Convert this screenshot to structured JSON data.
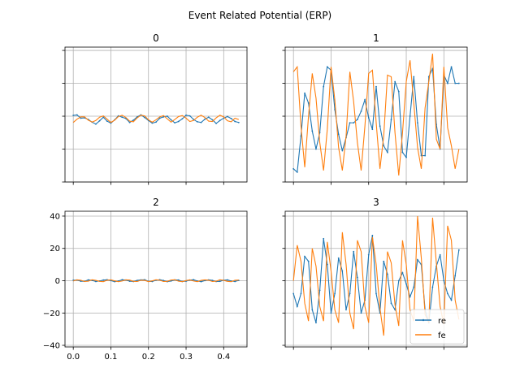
{
  "figure": {
    "title": "Event Related Potential (ERP)"
  },
  "colors": {
    "re": "#1f77b4",
    "fe": "#ff7f0e",
    "grid": "#b0b0b0",
    "axes": "#000000"
  },
  "chart_data": [
    {
      "type": "line",
      "title": "0",
      "xlim": [
        -0.022,
        0.462
      ],
      "ylim": [
        -40,
        42
      ],
      "grid": true,
      "x_ticks_labeled": false,
      "y_ticks_labeled": false,
      "x": [
        0.0,
        0.01,
        0.02,
        0.03,
        0.04,
        0.05,
        0.06,
        0.07,
        0.08,
        0.09,
        0.1,
        0.11,
        0.12,
        0.13,
        0.14,
        0.15,
        0.16,
        0.17,
        0.18,
        0.19,
        0.2,
        0.21,
        0.22,
        0.23,
        0.24,
        0.25,
        0.26,
        0.27,
        0.28,
        0.29,
        0.3,
        0.31,
        0.32,
        0.33,
        0.34,
        0.35,
        0.36,
        0.37,
        0.38,
        0.39,
        0.4,
        0.41,
        0.42,
        0.43,
        0.44
      ],
      "series": [
        {
          "name": "re",
          "values": [
            0.5,
            0.8,
            -1.2,
            -1.0,
            -2.0,
            -3.6,
            -4.8,
            -2.8,
            -0.6,
            -3.0,
            -4.2,
            -2.2,
            0.2,
            -0.6,
            -1.4,
            -3.8,
            -2.4,
            -0.4,
            0.8,
            -0.8,
            -2.6,
            -4.2,
            -3.6,
            -1.2,
            -0.4,
            0.0,
            -2.2,
            -4.0,
            -3.2,
            -1.6,
            0.6,
            0.2,
            -2.0,
            -3.4,
            -3.8,
            -1.8,
            -0.6,
            -2.2,
            -4.4,
            -2.6,
            -1.2,
            -0.2,
            -1.4,
            -3.2,
            -3.8
          ]
        },
        {
          "name": "fe",
          "values": [
            -3.8,
            -1.8,
            -0.4,
            -0.4,
            -2.4,
            -3.6,
            -2.6,
            -0.6,
            0.2,
            -1.8,
            -3.8,
            -2.4,
            -0.2,
            0.6,
            -0.8,
            -3.0,
            -3.4,
            -1.0,
            0.6,
            0.2,
            -2.2,
            -3.6,
            -2.2,
            -0.4,
            0.4,
            -1.6,
            -3.6,
            -2.0,
            -0.2,
            0.4,
            -1.2,
            -3.2,
            -2.6,
            -0.6,
            0.6,
            -0.8,
            -3.0,
            -3.2,
            -1.0,
            0.6,
            -0.4,
            -2.8,
            -3.4,
            -1.2,
            -2.0
          ]
        }
      ]
    },
    {
      "type": "line",
      "title": "1",
      "xlim": [
        -0.022,
        0.462
      ],
      "ylim": [
        -40,
        42
      ],
      "grid": true,
      "x_ticks_labeled": false,
      "y_ticks_labeled": false,
      "x": [
        0.0,
        0.01,
        0.02,
        0.03,
        0.04,
        0.05,
        0.06,
        0.07,
        0.08,
        0.09,
        0.1,
        0.11,
        0.12,
        0.13,
        0.14,
        0.15,
        0.16,
        0.17,
        0.18,
        0.19,
        0.2,
        0.21,
        0.22,
        0.23,
        0.24,
        0.25,
        0.26,
        0.27,
        0.28,
        0.29,
        0.3,
        0.31,
        0.32,
        0.33,
        0.34,
        0.35,
        0.36,
        0.37,
        0.38,
        0.39,
        0.4,
        0.41,
        0.42,
        0.43,
        0.44
      ],
      "series": [
        {
          "name": "re",
          "values": [
            -32,
            -34,
            -12,
            14,
            8,
            -9,
            -20,
            -10,
            18,
            30,
            28,
            4,
            -11,
            -21,
            -13,
            -4,
            -4,
            -2,
            3,
            10,
            -1,
            -8,
            18,
            -6,
            -18,
            -22,
            -2,
            21,
            15,
            -22,
            -25,
            0,
            24,
            -4,
            -24,
            -24,
            24,
            29,
            -5,
            -20,
            25,
            20,
            30,
            20,
            20
          ]
        },
        {
          "name": "fe",
          "values": [
            27,
            30,
            -6,
            -31,
            0,
            26,
            11,
            -16,
            -33,
            -8,
            30,
            10,
            -19,
            -33,
            -12,
            27,
            9,
            -16,
            -33,
            -6,
            26,
            28,
            -4,
            -32,
            -12,
            25,
            24,
            -10,
            -36,
            -10,
            21,
            34,
            8,
            -19,
            -32,
            5,
            21,
            38,
            -14,
            -20,
            30,
            -7,
            -18,
            -32,
            -20
          ]
        }
      ]
    },
    {
      "type": "line",
      "title": "2",
      "xlim": [
        -0.022,
        0.462
      ],
      "ylim": [
        -41,
        43
      ],
      "grid": true,
      "x_ticks": [
        0.0,
        0.1,
        0.2,
        0.3,
        0.4
      ],
      "x_tick_labels": [
        "0.0",
        "0.1",
        "0.2",
        "0.3",
        "0.4"
      ],
      "y_ticks": [
        -40,
        -20,
        0,
        20,
        40
      ],
      "y_tick_labels": [
        "−40",
        "−20",
        "0",
        "20",
        "40"
      ],
      "x": [
        0.0,
        0.01,
        0.02,
        0.03,
        0.04,
        0.05,
        0.06,
        0.07,
        0.08,
        0.09,
        0.1,
        0.11,
        0.12,
        0.13,
        0.14,
        0.15,
        0.16,
        0.17,
        0.18,
        0.19,
        0.2,
        0.21,
        0.22,
        0.23,
        0.24,
        0.25,
        0.26,
        0.27,
        0.28,
        0.29,
        0.3,
        0.31,
        0.32,
        0.33,
        0.34,
        0.35,
        0.36,
        0.37,
        0.38,
        0.39,
        0.4,
        0.41,
        0.42,
        0.43,
        0.44
      ],
      "series": [
        {
          "name": "re",
          "values": [
            0.3,
            0.4,
            -0.3,
            -0.4,
            0.5,
            0.2,
            -0.5,
            -0.2,
            0.4,
            0.6,
            0.1,
            -0.6,
            -0.2,
            0.6,
            0.4,
            -0.3,
            -0.5,
            0.2,
            0.5,
            0.6,
            -0.4,
            -0.5,
            0.3,
            0.6,
            0.1,
            -0.6,
            -0.2,
            0.5,
            0.4,
            -0.5,
            -0.3,
            0.4,
            0.6,
            -0.2,
            -0.6,
            0.1,
            0.5,
            0.2,
            -0.5,
            -0.4,
            0.3,
            0.5,
            -0.2,
            -0.5,
            0.2
          ]
        },
        {
          "name": "fe",
          "values": [
            -0.2,
            0.5,
            0.3,
            -0.5,
            -0.3,
            0.6,
            0.2,
            -0.4,
            -0.6,
            0.3,
            0.5,
            -0.1,
            -0.6,
            -0.2,
            0.5,
            0.4,
            -0.4,
            -0.5,
            0.3,
            0.2,
            -0.6,
            -0.1,
            0.6,
            0.3,
            -0.5,
            -0.4,
            0.4,
            0.6,
            -0.3,
            -0.6,
            0.1,
            0.5,
            -0.2,
            -0.6,
            0.2,
            0.5,
            0.3,
            -0.5,
            -0.3,
            0.6,
            0.2,
            -0.4,
            -0.6,
            0.3,
            0.4
          ]
        }
      ]
    },
    {
      "type": "line",
      "title": "3",
      "xlim": [
        -0.022,
        0.462
      ],
      "ylim": [
        -41,
        43
      ],
      "grid": true,
      "x_ticks_labeled": false,
      "y_ticks_labeled": false,
      "legend": {
        "location": "lower right",
        "entries": [
          "re",
          "fe"
        ]
      },
      "x": [
        0.0,
        0.01,
        0.02,
        0.03,
        0.04,
        0.05,
        0.06,
        0.07,
        0.08,
        0.09,
        0.1,
        0.11,
        0.12,
        0.13,
        0.14,
        0.15,
        0.16,
        0.17,
        0.18,
        0.19,
        0.2,
        0.21,
        0.22,
        0.23,
        0.24,
        0.25,
        0.26,
        0.27,
        0.28,
        0.29,
        0.3,
        0.31,
        0.32,
        0.33,
        0.34,
        0.35,
        0.36,
        0.37,
        0.38,
        0.39,
        0.4,
        0.41,
        0.42,
        0.43,
        0.44
      ],
      "series": [
        {
          "name": "re",
          "values": [
            -8,
            -16,
            -8,
            15,
            12,
            -18,
            -26,
            -6,
            26,
            10,
            -20,
            -8,
            14,
            6,
            -18,
            -8,
            18,
            2,
            -20,
            -12,
            16,
            28,
            -8,
            -20,
            12,
            4,
            -14,
            -18,
            0,
            5,
            -2,
            -10,
            -4,
            13,
            10,
            -18,
            -26,
            -4,
            9,
            16,
            0,
            -8,
            -12,
            3,
            19
          ]
        },
        {
          "name": "fe",
          "values": [
            0,
            22,
            12,
            -14,
            -25,
            20,
            9,
            -16,
            -25,
            24,
            6,
            -18,
            -26,
            30,
            10,
            -20,
            -30,
            25,
            18,
            -16,
            -26,
            27,
            10,
            -17,
            -34,
            18,
            11,
            -15,
            -28,
            25,
            10,
            -18,
            -25,
            40,
            14,
            -21,
            -26,
            39,
            11,
            -16,
            -27,
            34,
            25,
            -12,
            -24
          ]
        }
      ]
    }
  ]
}
